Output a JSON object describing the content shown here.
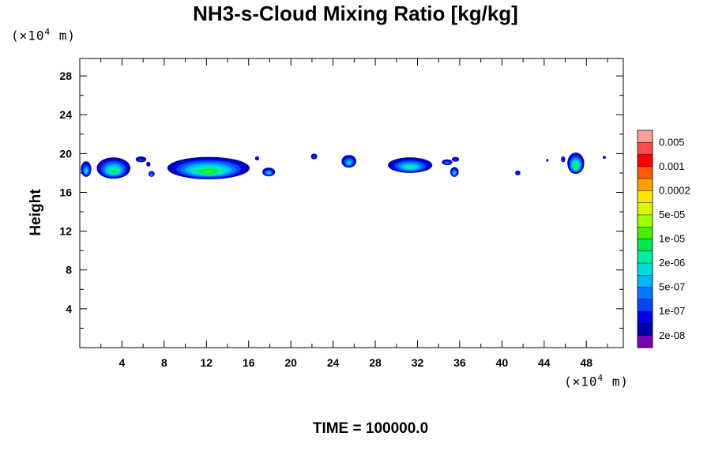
{
  "chart_data": {
    "type": "heatmap",
    "title": "NH3-s-Cloud Mixing Ratio [kg/kg]",
    "ylabel": "Height",
    "xlabel": "",
    "x_unit": {
      "prefix": "(×10",
      "exp": "4",
      "suffix": " m)"
    },
    "y_unit": {
      "prefix": "(×10",
      "exp": "4",
      "suffix": " m)"
    },
    "xlim": [
      0,
      51.5
    ],
    "ylim": [
      0,
      29.8
    ],
    "x_ticks": [
      4,
      8,
      12,
      16,
      20,
      24,
      28,
      32,
      36,
      40,
      44,
      48
    ],
    "y_ticks": [
      4,
      8,
      12,
      16,
      20,
      24,
      28
    ],
    "x_minor_step": 2,
    "y_minor_step": 2,
    "grid": false,
    "colorbar": {
      "position": "right",
      "labels": [
        "0.005",
        "0.001",
        "0.0002",
        "5e-05",
        "1e-05",
        "2e-06",
        "5e-07",
        "1e-07",
        "2e-08"
      ],
      "colors_top_to_bottom": [
        "#ff9d9d",
        "#ff4b4b",
        "#ff0000",
        "#ff5a00",
        "#ffa000",
        "#ffe600",
        "#dcf500",
        "#a0ff00",
        "#46f000",
        "#00e650",
        "#00f0a0",
        "#00dcdc",
        "#00b4ff",
        "#0078ff",
        "#0046ff",
        "#0000e6",
        "#0000aa",
        "#7800b4"
      ]
    },
    "clouds": [
      {
        "x": 0.6,
        "z": 18.4,
        "w": 1.0,
        "h": 1.6,
        "level": 5
      },
      {
        "x": 3.2,
        "z": 18.5,
        "w": 3.2,
        "h": 2.2,
        "level": 7
      },
      {
        "x": 5.8,
        "z": 19.4,
        "w": 1.0,
        "h": 0.6,
        "level": 2
      },
      {
        "x": 6.5,
        "z": 18.9,
        "w": 0.4,
        "h": 0.5,
        "level": 1
      },
      {
        "x": 6.8,
        "z": 17.9,
        "w": 0.6,
        "h": 0.6,
        "level": 4
      },
      {
        "x": 12.2,
        "z": 18.5,
        "w": 7.8,
        "h": 2.3,
        "level": 8
      },
      {
        "x": 16.8,
        "z": 19.5,
        "w": 0.4,
        "h": 0.4,
        "level": 1
      },
      {
        "x": 17.9,
        "z": 18.1,
        "w": 1.2,
        "h": 0.9,
        "level": 5
      },
      {
        "x": 22.2,
        "z": 19.7,
        "w": 0.6,
        "h": 0.6,
        "level": 2
      },
      {
        "x": 25.5,
        "z": 19.2,
        "w": 1.4,
        "h": 1.3,
        "level": 5
      },
      {
        "x": 31.3,
        "z": 18.8,
        "w": 4.2,
        "h": 1.6,
        "level": 6
      },
      {
        "x": 34.8,
        "z": 19.1,
        "w": 1.0,
        "h": 0.6,
        "level": 3
      },
      {
        "x": 35.6,
        "z": 19.4,
        "w": 0.7,
        "h": 0.5,
        "level": 2
      },
      {
        "x": 35.5,
        "z": 18.1,
        "w": 0.8,
        "h": 1.0,
        "level": 5
      },
      {
        "x": 41.5,
        "z": 18.0,
        "w": 0.5,
        "h": 0.5,
        "level": 2
      },
      {
        "x": 44.3,
        "z": 19.3,
        "w": 0.2,
        "h": 0.3,
        "level": 1
      },
      {
        "x": 45.8,
        "z": 19.4,
        "w": 0.4,
        "h": 0.6,
        "level": 2
      },
      {
        "x": 47.0,
        "z": 19.0,
        "w": 1.6,
        "h": 2.2,
        "level": 8
      },
      {
        "x": 49.7,
        "z": 19.6,
        "w": 0.3,
        "h": 0.3,
        "level": 1
      }
    ]
  },
  "footer": {
    "label": "TIME",
    "equals": " = ",
    "value": "100000.0"
  }
}
